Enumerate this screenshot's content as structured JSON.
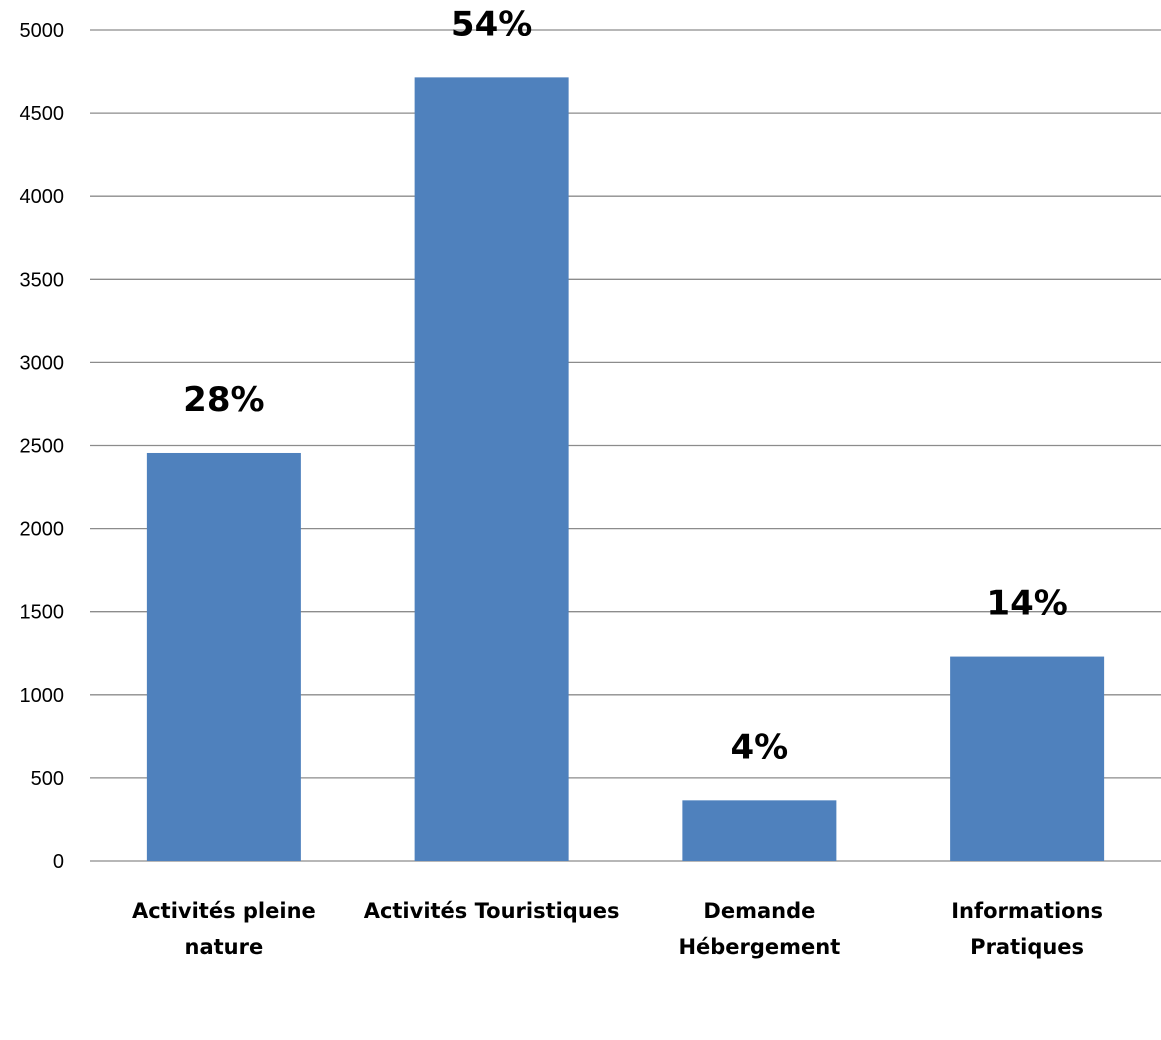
{
  "chart_data": {
    "type": "bar",
    "title": "",
    "xlabel": "",
    "ylabel": "",
    "categories": [
      [
        "Activités pleine",
        "nature"
      ],
      [
        "Activités Touristiques"
      ],
      [
        "Demande",
        "Hébergement"
      ],
      [
        "Informations",
        "Pratiques"
      ]
    ],
    "values": [
      2455,
      4715,
      365,
      1230
    ],
    "data_labels": [
      "28%",
      "54%",
      "4%",
      "14%"
    ],
    "ylim": [
      0,
      5000
    ],
    "yticks": [
      0,
      500,
      1000,
      1500,
      2000,
      2500,
      3000,
      3500,
      4000,
      4500,
      5000
    ],
    "grid": true,
    "legend": "none",
    "colors": {
      "bar": "#4f81bd"
    }
  }
}
